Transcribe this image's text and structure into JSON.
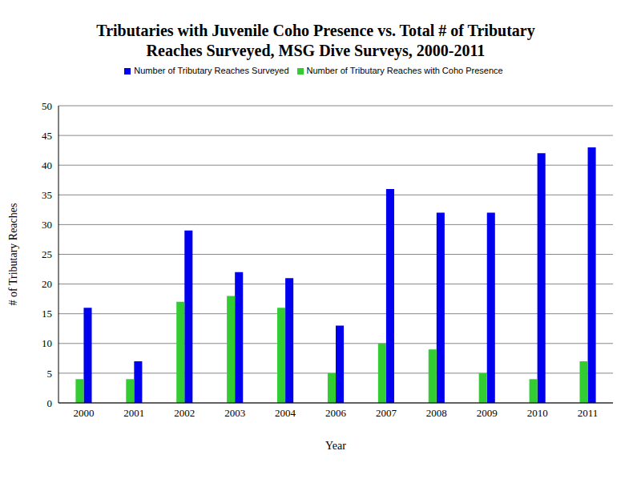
{
  "chart_data": {
    "type": "bar",
    "title": "Tributaries with Juvenile Coho Presence vs. Total # of Tributary Reaches Surveyed, MSG Dive Surveys, 2000-2011",
    "x_label": "Year",
    "y_label": "# of Tributary Reaches",
    "categories": [
      "2000",
      "2001",
      "2002",
      "2003",
      "2004",
      "2006",
      "2007",
      "2008",
      "2009",
      "2010",
      "2011"
    ],
    "series": [
      {
        "name": "Number of Tributary Reaches Surveyed",
        "color": "#0000ee",
        "values": [
          16,
          7,
          29,
          22,
          21,
          13,
          36,
          32,
          32,
          42,
          43
        ]
      },
      {
        "name": "Number of Tributary Reaches with Coho Presence",
        "color": "#33cc33",
        "values": [
          4,
          4,
          17,
          18,
          16,
          5,
          10,
          9,
          5,
          4,
          7
        ]
      }
    ],
    "ylim": [
      0,
      50
    ],
    "yticks": [
      0,
      5,
      10,
      15,
      20,
      25,
      30,
      35,
      40,
      45,
      50
    ],
    "grid": true,
    "legend": "top"
  }
}
